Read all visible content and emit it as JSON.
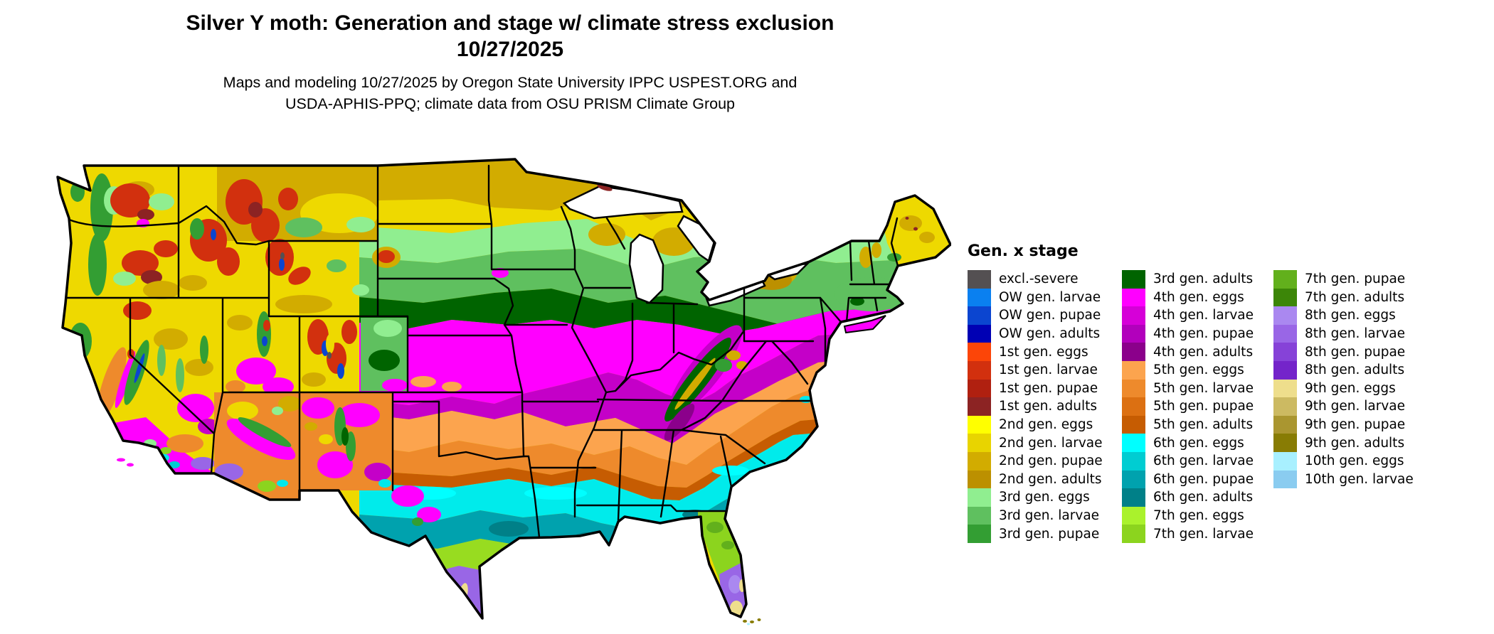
{
  "header": {
    "title": "Silver Y moth: Generation and stage w/ climate stress exclusion",
    "date": "10/27/2025",
    "credit_line1": "Maps and modeling 10/27/2025 by Oregon State University IPPC USPEST.ORG and",
    "credit_line2": "USDA-APHIS-PPQ; climate data from OSU PRISM Climate Group"
  },
  "legend": {
    "title": "Gen. x stage",
    "columns": [
      [
        {
          "label": "excl.-severe",
          "color": "#545052"
        },
        {
          "label": "OW gen. larvae",
          "color": "#0a80f0"
        },
        {
          "label": "OW gen. pupae",
          "color": "#0b45d0"
        },
        {
          "label": "OW gen. adults",
          "color": "#0000b4"
        },
        {
          "label": "1st gen. eggs",
          "color": "#fc4508"
        },
        {
          "label": "1st gen. larvae",
          "color": "#d2300e"
        },
        {
          "label": "1st gen. pupae",
          "color": "#b02010"
        },
        {
          "label": "1st gen. adults",
          "color": "#8c2323"
        },
        {
          "label": "2nd gen. eggs",
          "color": "#ffff00"
        },
        {
          "label": "2nd gen. larvae",
          "color": "#e8d400"
        },
        {
          "label": "2nd gen. pupae",
          "color": "#d2ac00"
        },
        {
          "label": "2nd gen. adults",
          "color": "#bc9000"
        },
        {
          "label": "3rd gen. eggs",
          "color": "#90ee90"
        },
        {
          "label": "3rd gen. larvae",
          "color": "#5fc05f"
        },
        {
          "label": "3rd gen. pupae",
          "color": "#339e33"
        }
      ],
      [
        {
          "label": "3rd gen. adults",
          "color": "#006400"
        },
        {
          "label": "4th gen. eggs",
          "color": "#ff00ff"
        },
        {
          "label": "4th gen. larvae",
          "color": "#d600d8"
        },
        {
          "label": "4th gen. pupae",
          "color": "#b200bc"
        },
        {
          "label": "4th gen. adults",
          "color": "#8b008b"
        },
        {
          "label": "5th gen. eggs",
          "color": "#fca44e"
        },
        {
          "label": "5th gen. larvae",
          "color": "#ee8a2c"
        },
        {
          "label": "5th gen. pupae",
          "color": "#dc7012"
        },
        {
          "label": "5th gen. adults",
          "color": "#c65c02"
        },
        {
          "label": "6th gen. eggs",
          "color": "#00ffff"
        },
        {
          "label": "6th gen. larvae",
          "color": "#00cdd2"
        },
        {
          "label": "6th gen. pupae",
          "color": "#00a2ae"
        },
        {
          "label": "6th gen. adults",
          "color": "#008088"
        },
        {
          "label": "7th gen. eggs",
          "color": "#aaf22c"
        },
        {
          "label": "7th gen. larvae",
          "color": "#8cd41e"
        }
      ],
      [
        {
          "label": "7th gen. pupae",
          "color": "#62b01c"
        },
        {
          "label": "7th gen. adults",
          "color": "#3c8608"
        },
        {
          "label": "8th gen. eggs",
          "color": "#aa88f0"
        },
        {
          "label": "8th gen. larvae",
          "color": "#9966e6"
        },
        {
          "label": "8th gen. pupae",
          "color": "#8642d8"
        },
        {
          "label": "8th gen. adults",
          "color": "#7424ca"
        },
        {
          "label": "9th gen. eggs",
          "color": "#eede8c"
        },
        {
          "label": "9th gen. larvae",
          "color": "#ccba62"
        },
        {
          "label": "9th gen. pupae",
          "color": "#aa9630"
        },
        {
          "label": "9th gen. adults",
          "color": "#887c04"
        },
        {
          "label": "10th gen. eggs",
          "color": "#a8f0ff"
        },
        {
          "label": "10th gen. larvae",
          "color": "#8accf0"
        }
      ]
    ]
  }
}
